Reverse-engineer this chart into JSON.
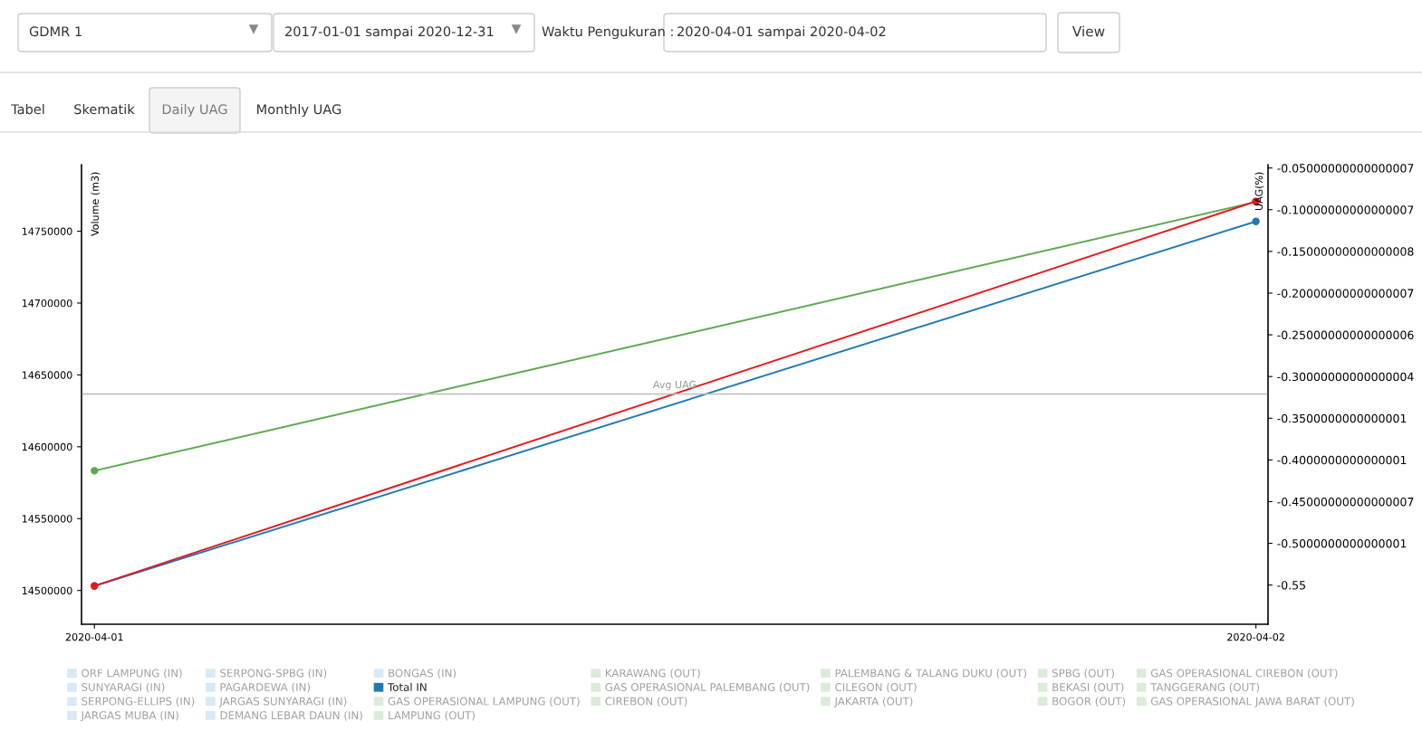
{
  "chart_data": {
    "type": "line",
    "annotations": [
      "GDMR 1",
      "2017-01-01 sampai 2020-12-31",
      "Waktu Pengukuran :",
      "2020-04-01 sampai 2020-04-02",
      "View",
      "Tabel",
      "Skematik",
      "Daily UAG",
      "Monthly UAG"
    ],
    "ylabel": "Volume (m3)",
    "y2label": "UAG(%)",
    "x": [
      "2020-04-01",
      "2020-04-02"
    ],
    "xlim": [
      "2020-03-31T23:44",
      "2020-04-02T00:15"
    ],
    "xticks": [
      "2020-04-01",
      "2020-04-02"
    ],
    "ylim": [
      14476500,
      14796300
    ],
    "yticks": [
      14500000,
      14550000,
      14600000,
      14650000,
      14700000,
      14750000
    ],
    "y2lim": [
      -0.597,
      -0.046
    ],
    "y2ticks": [
      {
        "value": -0.05,
        "label": "-0.05000000000000007"
      },
      {
        "value": -0.1,
        "label": "-0.10000000000000007"
      },
      {
        "value": -0.15,
        "label": "-0.15000000000000008"
      },
      {
        "value": -0.2,
        "label": "-0.20000000000000007"
      },
      {
        "value": -0.25,
        "label": "-0.25000000000000006"
      },
      {
        "value": -0.3,
        "label": "-0.30000000000000004"
      },
      {
        "value": -0.35,
        "label": "-0.3500000000000001"
      },
      {
        "value": -0.4,
        "label": "-0.4000000000000001"
      },
      {
        "value": -0.45,
        "label": "-0.45000000000000007"
      },
      {
        "value": -0.5,
        "label": "-0.5000000000000001"
      },
      {
        "value": -0.55,
        "label": "-0.55"
      }
    ],
    "ref_lines": [
      {
        "axis": "y2",
        "value": -0.321,
        "label": "Avg UAG",
        "color": "#bbbbbb"
      }
    ],
    "marker": "circle",
    "grid": false,
    "legend": "bottom",
    "series": [
      {
        "name": "ORF LAMPUNG (IN)",
        "color": "#d6e9f5",
        "values": [
          null,
          null
        ]
      },
      {
        "name": "SUNYARAGI (IN)",
        "color": "#d6e9f5",
        "values": [
          null,
          null
        ]
      },
      {
        "name": "SERPONG-ELLIPS (IN)",
        "color": "#d6e9f5",
        "values": [
          null,
          null
        ]
      },
      {
        "name": "JARGAS MUBA (IN)",
        "color": "#d6e9f5",
        "values": [
          null,
          null
        ]
      },
      {
        "name": "SERPONG-SPBG (IN)",
        "color": "#d6e9f5",
        "values": [
          null,
          null
        ]
      },
      {
        "name": "PAGARDEWA (IN)",
        "color": "#d6e9f5",
        "values": [
          null,
          null
        ]
      },
      {
        "name": "JARGAS SUNYARAGI (IN)",
        "color": "#d6e9f5",
        "values": [
          null,
          null
        ]
      },
      {
        "name": "DEMANG LEBAR DAUN (IN)",
        "color": "#d6e9f5",
        "values": [
          null,
          null
        ]
      },
      {
        "name": "BONGAS (IN)",
        "color": "#d6e9f5",
        "values": [
          null,
          null
        ]
      },
      {
        "name": "Total IN",
        "color": "#1f78b4",
        "values": [
          14503100,
          14756800
        ]
      },
      {
        "name": "GAS OPERASIONAL LAMPUNG (OUT)",
        "color": "#dcebd9",
        "values": [
          null,
          null
        ]
      },
      {
        "name": "LAMPUNG (OUT)",
        "color": "#dcebd9",
        "values": [
          null,
          null
        ]
      },
      {
        "name": "KARAWANG (OUT)",
        "color": "#dcebd9",
        "values": [
          null,
          null
        ]
      },
      {
        "name": "GAS OPERASIONAL PALEMBANG (OUT)",
        "color": "#dcebd9",
        "values": [
          null,
          null
        ]
      },
      {
        "name": "CIREBON (OUT)",
        "color": "#dcebd9",
        "values": [
          null,
          null
        ]
      },
      {
        "name": "PALEMBANG & TALANG DUKU (OUT)",
        "color": "#dcebd9",
        "values": [
          null,
          null
        ]
      },
      {
        "name": "CILEGON (OUT)",
        "color": "#dcebd9",
        "values": [
          null,
          null
        ]
      },
      {
        "name": "JAKARTA (OUT)",
        "color": "#dcebd9",
        "values": [
          null,
          null
        ]
      },
      {
        "name": "SPBG (OUT)",
        "color": "#dcebd9",
        "values": [
          null,
          null
        ]
      },
      {
        "name": "BEKASI (OUT)",
        "color": "#dcebd9",
        "values": [
          null,
          null
        ]
      },
      {
        "name": "BOGOR (OUT)",
        "color": "#dcebd9",
        "values": [
          null,
          null
        ]
      },
      {
        "name": "GAS OPERASIONAL CIREBON (OUT)",
        "color": "#dcebd9",
        "values": [
          null,
          null
        ]
      },
      {
        "name": "TANGGERANG (OUT)",
        "color": "#dcebd9",
        "values": [
          null,
          null
        ]
      },
      {
        "name": "GAS OPERASIONAL JAWA BARAT (OUT)",
        "color": "#dcebd9",
        "values": [
          null,
          null
        ]
      },
      {
        "color": "#5ea84f",
        "values": [
          14583300,
          14770400
        ]
      },
      {
        "color": "#e31a1c",
        "axis": "y2",
        "values": [
          -0.551,
          -0.09
        ]
      }
    ]
  }
}
